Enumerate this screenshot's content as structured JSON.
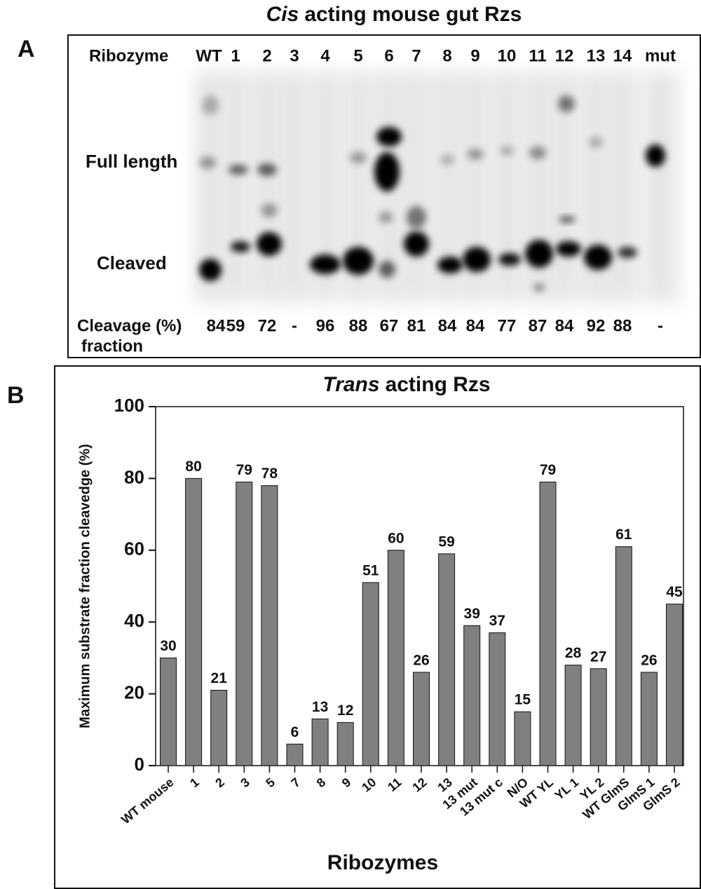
{
  "panel_labels": [
    "A",
    "B"
  ],
  "gel": {
    "title_italic": "Cis",
    "title": "acting mouse gut Rzs",
    "lane_header": "Ribozyme",
    "lanes": [
      "WT",
      "1",
      "2",
      "3",
      "4",
      "5",
      "6",
      "7",
      "8",
      "9",
      "10",
      "11",
      "12",
      "13",
      "14",
      "mut"
    ],
    "band_labels": [
      "Full length",
      "Cleaved"
    ],
    "cleavage_label": "Cleavage (%)",
    "cleavage_label_2": "fraction",
    "cleavage": [
      84,
      59,
      72,
      "-",
      96,
      88,
      67,
      81,
      84,
      84,
      77,
      87,
      84,
      92,
      88,
      "-"
    ]
  },
  "chart_data": {
    "type": "bar",
    "title_italic": "Trans",
    "title": "acting Rzs",
    "y_label": "Maximum substrate fraction cleavedge (%)",
    "x_label": "Ribozymes",
    "categories": [
      "WT mouse",
      "1",
      "2",
      "3",
      "5",
      "7",
      "8",
      "9",
      "10",
      "11",
      "12",
      "13",
      "13 mut",
      "13 mut c",
      "N/O",
      "WT YL",
      "YL 1",
      "YL 2",
      "WT GlmS",
      "GlmS 1",
      "GlmS 2"
    ],
    "values": [
      30,
      80,
      21,
      79,
      78,
      6,
      13,
      12,
      51,
      60,
      26,
      59,
      39,
      37,
      15,
      79,
      28,
      27,
      61,
      26,
      45
    ],
    "color": "#808080",
    "ylim": [
      0,
      100
    ],
    "yticks": [
      0,
      20,
      40,
      60,
      80,
      100
    ],
    "grid": false
  }
}
